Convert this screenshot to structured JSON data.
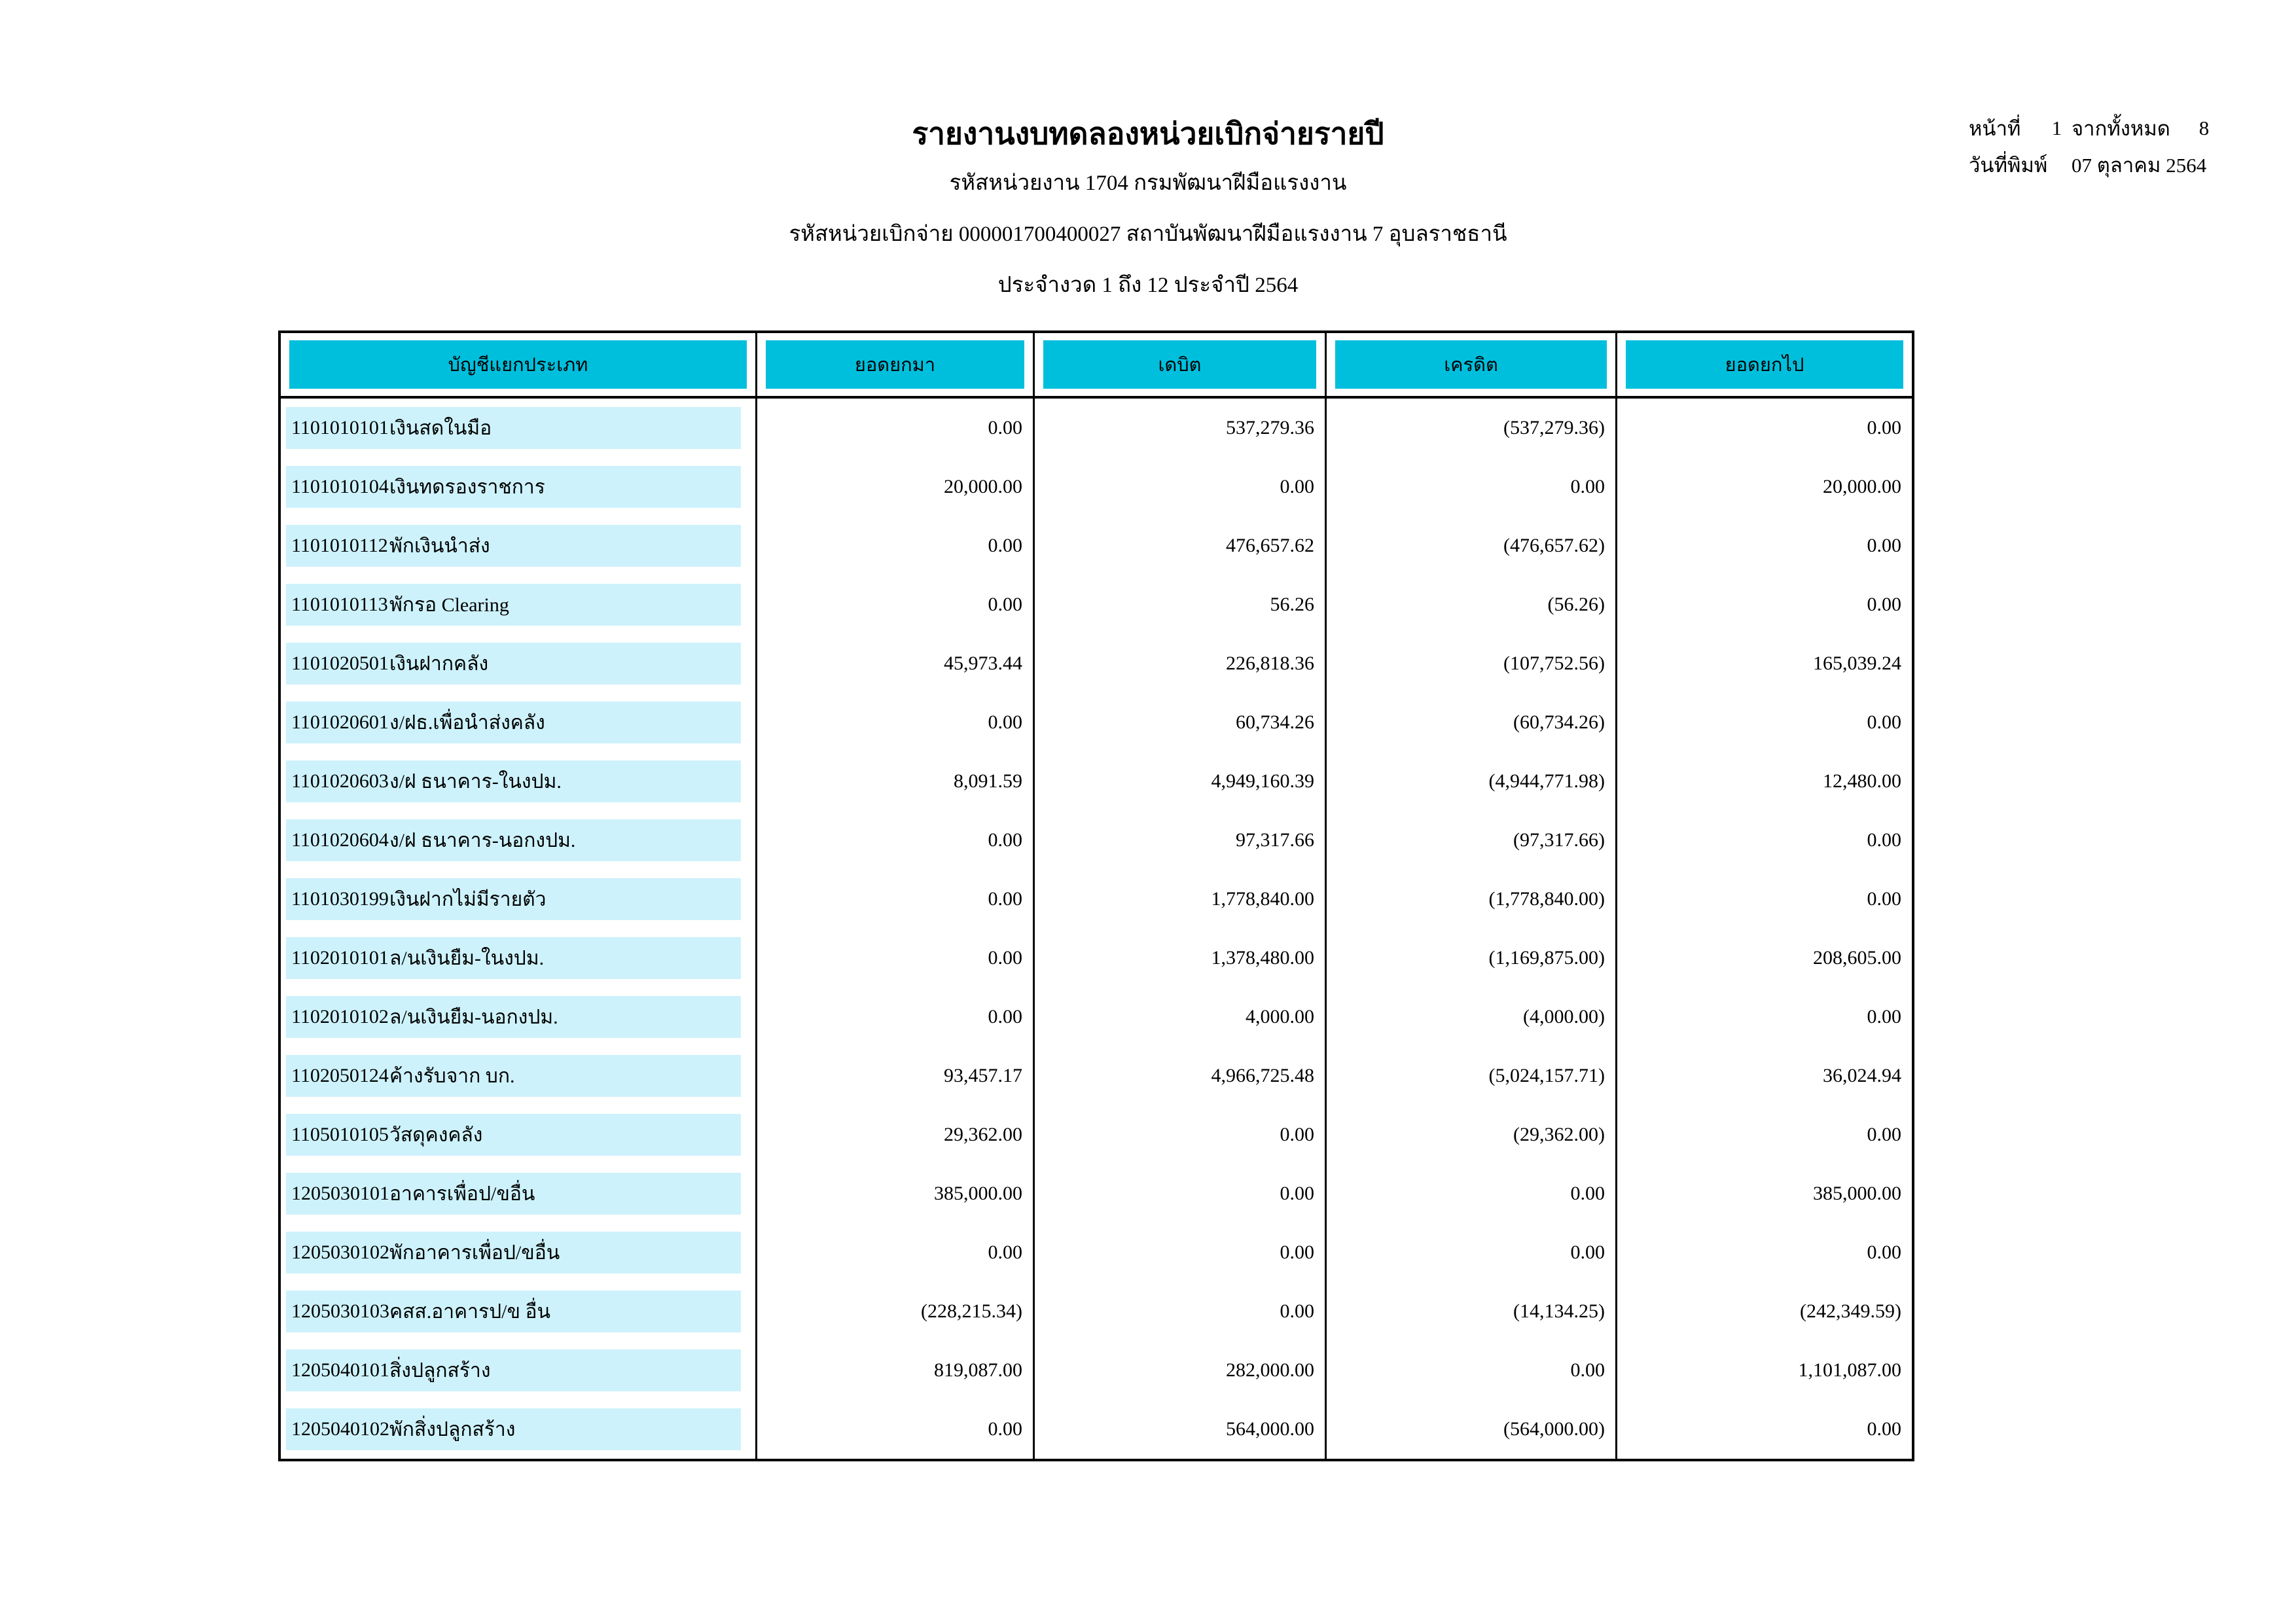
{
  "report": {
    "title": "รายงานงบทดลองหน่วยเบิกจ่ายรายปี",
    "subtitle_agency": "รหัสหน่วยงาน 1704 กรมพัฒนาฝีมือแรงงาน",
    "subtitle_disbursing_unit": "รหัสหน่วยเบิกจ่าย 000001700400027 สถาบันพัฒนาฝีมือแรงงาน 7 อุบลราชธานี",
    "subtitle_period": "ประจำงวด 1 ถึง 12 ประจำปี 2564",
    "page_label": "หน้าที่",
    "page_number": "1",
    "total_pages_label": "จากทั้งหมด",
    "total_pages": "8",
    "print_date_label": "วันที่พิมพ์",
    "print_date": "07 ตุลาคม 2564"
  },
  "table": {
    "columns": [
      "บัญชีแยกประเภท",
      "ยอดยกมา",
      "เดบิต",
      "เครดิต",
      "ยอดยกไป"
    ],
    "rows": [
      {
        "code": "1101010101",
        "name": "เงินสดในมือ",
        "carry_forward_in": "0.00",
        "debit": "537,279.36",
        "credit": "(537,279.36)",
        "carry_forward_out": "0.00"
      },
      {
        "code": "1101010104",
        "name": "เงินทดรองราชการ",
        "carry_forward_in": "20,000.00",
        "debit": "0.00",
        "credit": "0.00",
        "carry_forward_out": "20,000.00"
      },
      {
        "code": "1101010112",
        "name": "พักเงินนำส่ง",
        "carry_forward_in": "0.00",
        "debit": "476,657.62",
        "credit": "(476,657.62)",
        "carry_forward_out": "0.00"
      },
      {
        "code": "1101010113",
        "name": "พักรอ Clearing",
        "carry_forward_in": "0.00",
        "debit": "56.26",
        "credit": "(56.26)",
        "carry_forward_out": "0.00"
      },
      {
        "code": "1101020501",
        "name": "เงินฝากคลัง",
        "carry_forward_in": "45,973.44",
        "debit": "226,818.36",
        "credit": "(107,752.56)",
        "carry_forward_out": "165,039.24"
      },
      {
        "code": "1101020601",
        "name": "ง/ฝธ.เพื่อนำส่งคลัง",
        "carry_forward_in": "0.00",
        "debit": "60,734.26",
        "credit": "(60,734.26)",
        "carry_forward_out": "0.00"
      },
      {
        "code": "1101020603",
        "name": "ง/ฝ ธนาคาร-ในงปม.",
        "carry_forward_in": "8,091.59",
        "debit": "4,949,160.39",
        "credit": "(4,944,771.98)",
        "carry_forward_out": "12,480.00"
      },
      {
        "code": "1101020604",
        "name": "ง/ฝ ธนาคาร-นอกงปม.",
        "carry_forward_in": "0.00",
        "debit": "97,317.66",
        "credit": "(97,317.66)",
        "carry_forward_out": "0.00"
      },
      {
        "code": "1101030199",
        "name": "เงินฝากไม่มีรายตัว",
        "carry_forward_in": "0.00",
        "debit": "1,778,840.00",
        "credit": "(1,778,840.00)",
        "carry_forward_out": "0.00"
      },
      {
        "code": "1102010101",
        "name": "ล/นเงินยืม-ในงปม.",
        "carry_forward_in": "0.00",
        "debit": "1,378,480.00",
        "credit": "(1,169,875.00)",
        "carry_forward_out": "208,605.00"
      },
      {
        "code": "1102010102",
        "name": "ล/นเงินยืม-นอกงปม.",
        "carry_forward_in": "0.00",
        "debit": "4,000.00",
        "credit": "(4,000.00)",
        "carry_forward_out": "0.00"
      },
      {
        "code": "1102050124",
        "name": "ค้างรับจาก บก.",
        "carry_forward_in": "93,457.17",
        "debit": "4,966,725.48",
        "credit": "(5,024,157.71)",
        "carry_forward_out": "36,024.94"
      },
      {
        "code": "1105010105",
        "name": "วัสดุคงคลัง",
        "carry_forward_in": "29,362.00",
        "debit": "0.00",
        "credit": "(29,362.00)",
        "carry_forward_out": "0.00"
      },
      {
        "code": "1205030101",
        "name": "อาคารเพื่อป/ขอื่น",
        "carry_forward_in": "385,000.00",
        "debit": "0.00",
        "credit": "0.00",
        "carry_forward_out": "385,000.00"
      },
      {
        "code": "1205030102",
        "name": "พักอาคารเพื่อป/ขอื่น",
        "carry_forward_in": "0.00",
        "debit": "0.00",
        "credit": "0.00",
        "carry_forward_out": "0.00"
      },
      {
        "code": "1205030103",
        "name": "คสส.อาคารป/ข อื่น",
        "carry_forward_in": "(228,215.34)",
        "debit": "0.00",
        "credit": "(14,134.25)",
        "carry_forward_out": "(242,349.59)"
      },
      {
        "code": "1205040101",
        "name": "สิ่งปลูกสร้าง",
        "carry_forward_in": "819,087.00",
        "debit": "282,000.00",
        "credit": "0.00",
        "carry_forward_out": "1,101,087.00"
      },
      {
        "code": "1205040102",
        "name": "พักสิ่งปลูกสร้าง",
        "carry_forward_in": "0.00",
        "debit": "564,000.00",
        "credit": "(564,000.00)",
        "carry_forward_out": "0.00"
      }
    ]
  },
  "colors": {
    "header_bg": "#00bfdd",
    "row_bg": "#cdf2fb"
  }
}
